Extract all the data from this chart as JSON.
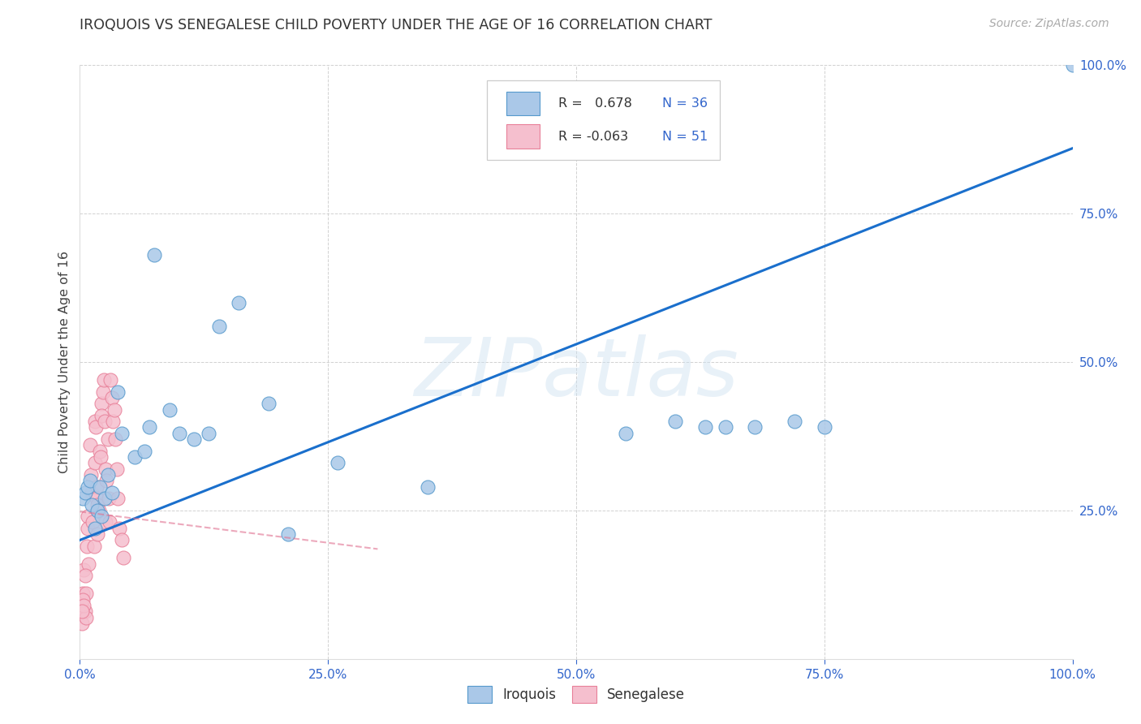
{
  "title": "IROQUOIS VS SENEGALESE CHILD POVERTY UNDER THE AGE OF 16 CORRELATION CHART",
  "source": "Source: ZipAtlas.com",
  "ylabel": "Child Poverty Under the Age of 16",
  "watermark": "ZIPatlas",
  "iroquois_R": 0.678,
  "iroquois_N": 36,
  "senegalese_R": -0.063,
  "senegalese_N": 51,
  "iroquois_color": "#aac8e8",
  "iroquois_edge_color": "#5599cc",
  "iroquois_line_color": "#1a6fcc",
  "senegalese_color": "#f5bfce",
  "senegalese_edge_color": "#e88099",
  "senegalese_line_color": "#e07090",
  "background": "#ffffff",
  "grid_color": "#cccccc",
  "xlim": [
    0,
    1
  ],
  "ylim": [
    0,
    1
  ],
  "iroquois_x": [
    0.003,
    0.005,
    0.008,
    0.01,
    0.012,
    0.015,
    0.018,
    0.02,
    0.022,
    0.025,
    0.028,
    0.032,
    0.038,
    0.042,
    0.055,
    0.065,
    0.07,
    0.075,
    0.09,
    0.1,
    0.115,
    0.13,
    0.14,
    0.16,
    0.19,
    0.21,
    0.26,
    0.35,
    0.55,
    0.6,
    0.63,
    0.65,
    0.68,
    0.72,
    0.75,
    1.0
  ],
  "iroquois_y": [
    0.27,
    0.28,
    0.29,
    0.3,
    0.26,
    0.22,
    0.25,
    0.29,
    0.24,
    0.27,
    0.31,
    0.28,
    0.45,
    0.38,
    0.34,
    0.35,
    0.39,
    0.68,
    0.42,
    0.38,
    0.37,
    0.38,
    0.56,
    0.6,
    0.43,
    0.21,
    0.33,
    0.29,
    0.38,
    0.4,
    0.39,
    0.39,
    0.39,
    0.4,
    0.39,
    1.0
  ],
  "senegalese_x": [
    0.001,
    0.002,
    0.003,
    0.004,
    0.005,
    0.006,
    0.007,
    0.008,
    0.008,
    0.009,
    0.01,
    0.011,
    0.012,
    0.013,
    0.014,
    0.015,
    0.015,
    0.016,
    0.017,
    0.017,
    0.018,
    0.018,
    0.019,
    0.02,
    0.021,
    0.022,
    0.022,
    0.023,
    0.024,
    0.025,
    0.026,
    0.026,
    0.027,
    0.028,
    0.029,
    0.03,
    0.031,
    0.032,
    0.033,
    0.035,
    0.036,
    0.037,
    0.038,
    0.04,
    0.042,
    0.044,
    0.005,
    0.006,
    0.003,
    0.004,
    0.002
  ],
  "senegalese_y": [
    0.09,
    0.06,
    0.11,
    0.15,
    0.08,
    0.07,
    0.19,
    0.24,
    0.22,
    0.16,
    0.36,
    0.31,
    0.28,
    0.23,
    0.19,
    0.33,
    0.4,
    0.39,
    0.29,
    0.27,
    0.26,
    0.21,
    0.25,
    0.35,
    0.34,
    0.43,
    0.41,
    0.45,
    0.47,
    0.4,
    0.23,
    0.32,
    0.3,
    0.37,
    0.27,
    0.23,
    0.47,
    0.44,
    0.4,
    0.42,
    0.37,
    0.32,
    0.27,
    0.22,
    0.2,
    0.17,
    0.14,
    0.11,
    0.1,
    0.09,
    0.08
  ],
  "iq_line_x0": 0.0,
  "iq_line_y0": 0.2,
  "iq_line_x1": 1.0,
  "iq_line_y1": 0.86,
  "sn_line_x0": 0.0,
  "sn_line_y0": 0.248,
  "sn_line_x1": 0.3,
  "sn_line_y1": 0.185
}
